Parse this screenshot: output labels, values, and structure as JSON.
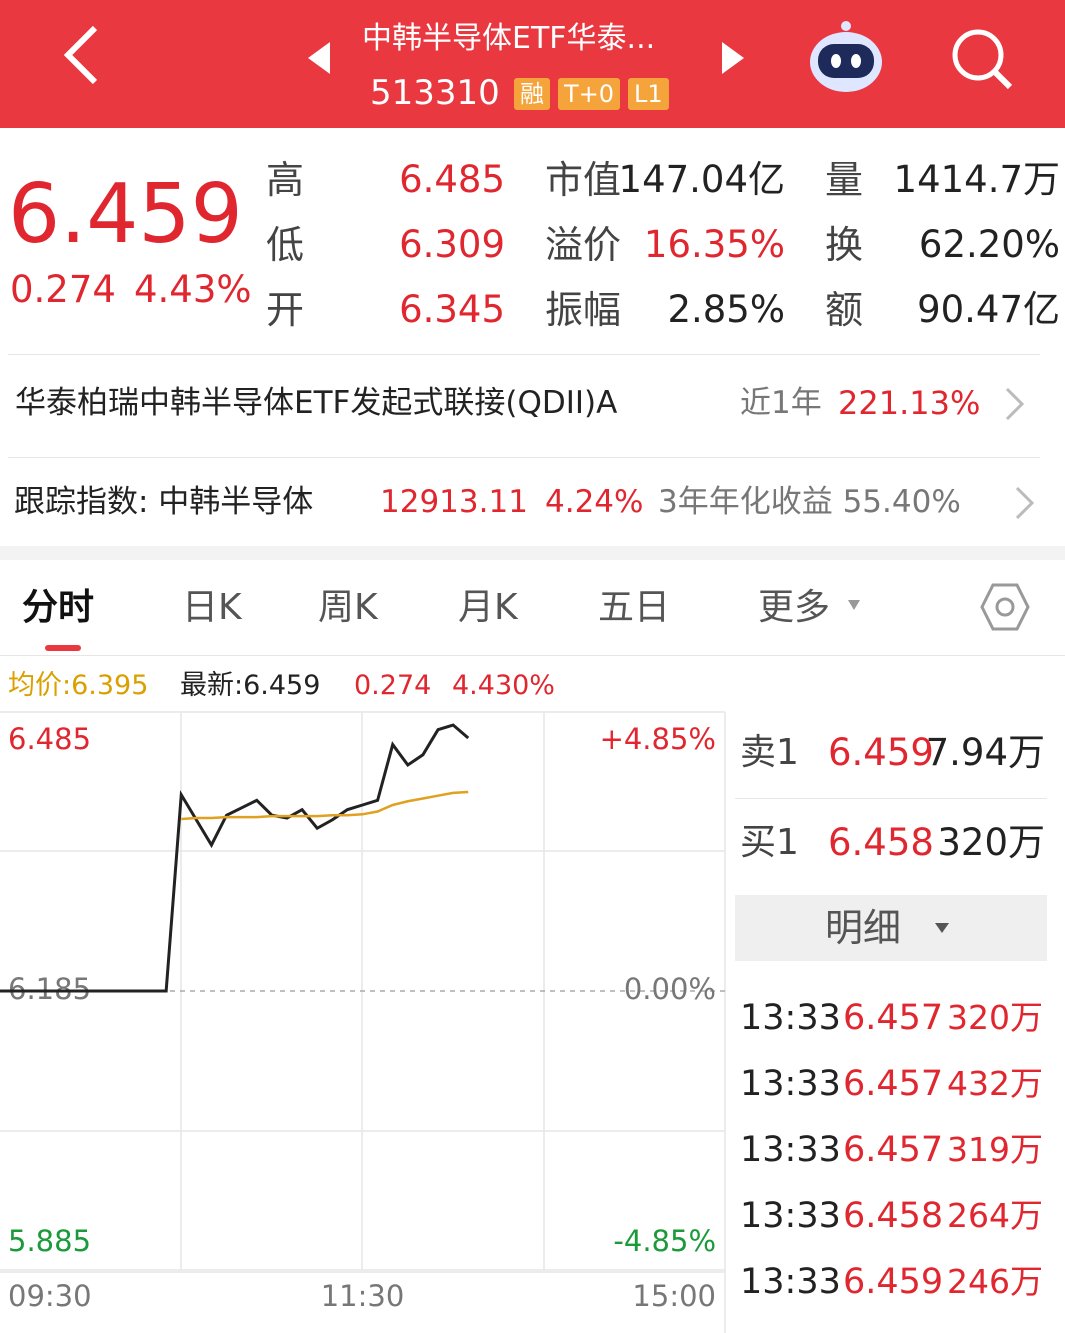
{
  "header": {
    "title": "中韩半导体ETF华泰...",
    "code": "513310",
    "badges": [
      "融",
      "T+0",
      "L1"
    ]
  },
  "quote": {
    "price": "6.459",
    "change": "0.274",
    "change_pct": "4.43%",
    "stats": [
      {
        "label": "高",
        "value": "6.485"
      },
      {
        "label": "低",
        "value": "6.309"
      },
      {
        "label": "开",
        "value": "6.345"
      },
      {
        "label": "市值",
        "value": "147.04亿"
      },
      {
        "label": "溢价",
        "value": "16.35%"
      },
      {
        "label": "振幅",
        "value": "2.85%"
      },
      {
        "label": "量",
        "value": "1414.7万"
      },
      {
        "label": "换",
        "value": "62.20%"
      },
      {
        "label": "额",
        "value": "90.47亿"
      }
    ]
  },
  "fund": {
    "name": "华泰柏瑞中韩半导体ETF发起式联接(QDII)A",
    "period": "近1年",
    "return": "221.13%"
  },
  "index": {
    "label": "跟踪指数: 中韩半导体",
    "value": "12913.11",
    "change": "4.24%",
    "annualized": "3年年化收益 55.40%"
  },
  "tabs": [
    "分时",
    "日K",
    "周K",
    "月K",
    "五日",
    "更多"
  ],
  "summary": {
    "avg": "均价:6.395",
    "latest": "最新:6.459",
    "change": "0.274",
    "change_pct": "4.430%"
  },
  "chart_data": {
    "type": "line",
    "x": [
      0,
      5,
      10,
      15,
      20,
      25,
      30,
      35,
      40,
      45,
      50,
      55,
      60,
      65,
      70,
      75,
      80,
      85,
      90,
      95,
      100,
      105,
      110,
      115,
      120,
      125,
      130,
      135,
      140,
      145,
      150,
      155
    ],
    "xlim": [
      0,
      240
    ],
    "xticks": [
      {
        "value": 0,
        "label": "09:30"
      },
      {
        "value": 120,
        "label": "11:30"
      },
      {
        "value": 240,
        "label": "15:00"
      }
    ],
    "ylim": [
      5.885,
      6.485
    ],
    "yticks": [
      6.485,
      6.185,
      5.885
    ],
    "y2lim": [
      -4.85,
      4.85
    ],
    "y2ticks": [
      {
        "value": 4.85,
        "label": "+4.85%"
      },
      {
        "value": 0,
        "label": "0.00%"
      },
      {
        "value": -4.85,
        "label": "-4.85%"
      }
    ],
    "series": [
      {
        "color": "#222222",
        "values": [
          6.185,
          6.185,
          6.185,
          6.185,
          6.185,
          6.185,
          6.185,
          6.185,
          6.185,
          6.185,
          6.185,
          6.185,
          6.396,
          6.369,
          6.342,
          6.374,
          6.382,
          6.39,
          6.374,
          6.371,
          6.38,
          6.36,
          6.369,
          6.38,
          6.385,
          6.39,
          6.45,
          6.428,
          6.439,
          6.466,
          6.471,
          6.457
        ]
      },
      {
        "color": "#e0a020",
        "values": [
          null,
          null,
          null,
          null,
          null,
          null,
          null,
          null,
          null,
          null,
          null,
          null,
          6.37,
          6.371,
          6.371,
          6.372,
          6.372,
          6.372,
          6.373,
          6.373,
          6.373,
          6.373,
          6.374,
          6.374,
          6.375,
          6.378,
          6.385,
          6.389,
          6.392,
          6.395,
          6.398,
          6.399
        ]
      }
    ]
  },
  "orderbook": [
    {
      "side": "卖1",
      "price": "6.459",
      "volume": "7.94万"
    },
    {
      "side": "买1",
      "price": "6.458",
      "volume": "320万"
    }
  ],
  "detail_button": "明细",
  "trades": [
    {
      "time": "13:33",
      "price": "6.457",
      "volume": "320万"
    },
    {
      "time": "13:33",
      "price": "6.457",
      "volume": "432万"
    },
    {
      "time": "13:33",
      "price": "6.457",
      "volume": "319万"
    },
    {
      "time": "13:33",
      "price": "6.458",
      "volume": "264万"
    },
    {
      "time": "13:33",
      "price": "6.459",
      "volume": "246万"
    }
  ]
}
